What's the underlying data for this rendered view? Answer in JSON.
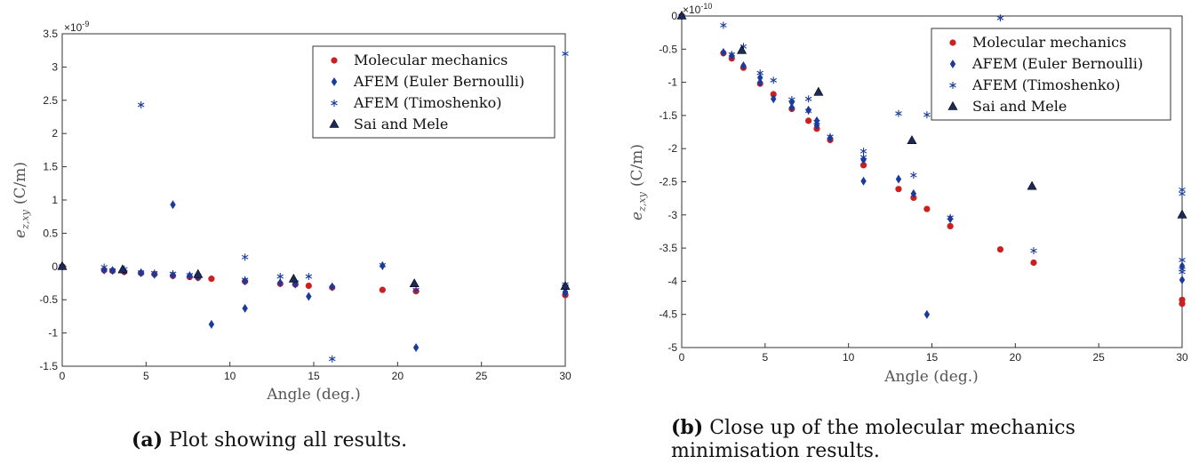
{
  "chart_data": [
    {
      "type": "scatter",
      "xlabel": "Angle (deg.)",
      "ylabel_main": "e",
      "ylabel_sub": "z,xy",
      "ylabel_unit": "(C/m)",
      "exponent": "×10",
      "exponent_power": "-9",
      "xlim": [
        0,
        30
      ],
      "ylim": [
        -1.5,
        3.5
      ],
      "xticks": [
        0,
        5,
        10,
        15,
        20,
        25,
        30
      ],
      "xtick_labels": [
        "0",
        "5",
        "10",
        "15",
        "20",
        "25",
        "30"
      ],
      "yticks": [
        -1.5,
        -1,
        -0.5,
        0,
        0.5,
        1,
        1.5,
        2,
        2.5,
        3,
        3.5
      ],
      "ytick_labels": [
        "-1.5",
        "-1",
        "-0.5",
        "0",
        "0.5",
        "1",
        "1.5",
        "2",
        "2.5",
        "3",
        "3.5"
      ],
      "grid": false,
      "legend_position": "top-right",
      "caption_label": "(a)",
      "caption_text": "Plot showing all results.",
      "series": [
        {
          "name": "Molecular mechanics",
          "marker": "circle",
          "color": "#cc2020",
          "points": [
            [
              0,
              0
            ],
            [
              2.5,
              -0.055
            ],
            [
              3,
              -0.065
            ],
            [
              3.7,
              -0.08
            ],
            [
              4.7,
              -0.1
            ],
            [
              5.5,
              -0.115
            ],
            [
              6.6,
              -0.14
            ],
            [
              7.6,
              -0.158
            ],
            [
              8.1,
              -0.17
            ],
            [
              8.9,
              -0.185
            ],
            [
              10.9,
              -0.225
            ],
            [
              13,
              -0.26
            ],
            [
              13.9,
              -0.27
            ],
            [
              14.7,
              -0.29
            ],
            [
              16.1,
              -0.315
            ],
            [
              19.1,
              -0.352
            ],
            [
              21.1,
              -0.372
            ],
            [
              30,
              -0.425
            ],
            [
              30,
              -0.43
            ]
          ]
        },
        {
          "name": "AFEM (Euler Bernoulli)",
          "marker": "diamond",
          "color": "#1a3b9c",
          "points": [
            [
              0,
              0
            ],
            [
              2.5,
              -0.055
            ],
            [
              3,
              -0.06
            ],
            [
              3.7,
              -0.07
            ],
            [
              4.7,
              -0.095
            ],
            [
              5.5,
              -0.12
            ],
            [
              6.6,
              0.93
            ],
            [
              6.6,
              -0.13
            ],
            [
              7.6,
              -0.14
            ],
            [
              8.1,
              -0.16
            ],
            [
              8.9,
              -0.87
            ],
            [
              10.9,
              -0.63
            ],
            [
              10.9,
              -0.22
            ],
            [
              13,
              -0.245
            ],
            [
              13.9,
              -0.265
            ],
            [
              14.7,
              -0.45
            ],
            [
              16.1,
              -0.305
            ],
            [
              19.1,
              0.01
            ],
            [
              21.1,
              -1.22
            ],
            [
              30,
              -0.38
            ],
            [
              30,
              -0.4
            ]
          ]
        },
        {
          "name": "AFEM (Timoshenko)",
          "marker": "asterisk",
          "color": "#1a3b9c",
          "points": [
            [
              0,
              0
            ],
            [
              2.5,
              -0.01
            ],
            [
              3,
              -0.06
            ],
            [
              3.7,
              -0.04
            ],
            [
              4.7,
              2.43
            ],
            [
              4.7,
              -0.09
            ],
            [
              5.5,
              -0.1
            ],
            [
              6.6,
              -0.11
            ],
            [
              7.6,
              -0.13
            ],
            [
              8.1,
              -0.14
            ],
            [
              10.9,
              0.14
            ],
            [
              10.9,
              -0.2
            ],
            [
              13,
              -0.15
            ],
            [
              13.9,
              -0.24
            ],
            [
              14.7,
              -0.15
            ],
            [
              16.1,
              -1.39
            ],
            [
              19.1,
              0.02
            ],
            [
              21.1,
              -0.355
            ],
            [
              30,
              3.2
            ],
            [
              30,
              -0.27
            ],
            [
              30,
              -0.3
            ]
          ]
        },
        {
          "name": "Sai and Mele",
          "marker": "triangle",
          "color": "#1a2a5c",
          "points": [
            [
              0,
              0
            ],
            [
              3.6,
              -0.05
            ],
            [
              8.1,
              -0.12
            ],
            [
              13.8,
              -0.19
            ],
            [
              21,
              -0.26
            ],
            [
              30,
              -0.3
            ]
          ]
        }
      ]
    },
    {
      "type": "scatter",
      "xlabel": "Angle (deg.)",
      "ylabel_main": "e",
      "ylabel_sub": "z,xy",
      "ylabel_unit": "(C/m)",
      "exponent": "×10",
      "exponent_power": "-10",
      "xlim": [
        0,
        30
      ],
      "ylim": [
        -5,
        0
      ],
      "xticks": [
        0,
        5,
        10,
        15,
        20,
        25,
        30
      ],
      "xtick_labels": [
        "0",
        "5",
        "10",
        "15",
        "20",
        "25",
        "30"
      ],
      "yticks": [
        -5,
        -4.5,
        -4,
        -3.5,
        -3,
        -2.5,
        -2,
        -1.5,
        -1,
        -0.5,
        0
      ],
      "ytick_labels": [
        "-5",
        "-4.5",
        "-4",
        "-3.5",
        "-3",
        "-2.5",
        "-2",
        "-1.5",
        "-1",
        "-0.5",
        "0"
      ],
      "grid": false,
      "legend_position": "top-right",
      "caption_label": "(b)",
      "caption_text_line1": "Close up of the molecular mechanics",
      "caption_text_line2": "minimisation results.",
      "series": [
        {
          "name": "Molecular mechanics",
          "marker": "circle",
          "color": "#cc2020",
          "points": [
            [
              0,
              0
            ],
            [
              2.5,
              -0.56
            ],
            [
              3,
              -0.64
            ],
            [
              3.7,
              -0.78
            ],
            [
              4.7,
              -1.02
            ],
            [
              5.5,
              -1.18
            ],
            [
              6.6,
              -1.4
            ],
            [
              7.6,
              -1.58
            ],
            [
              8.1,
              -1.7
            ],
            [
              8.9,
              -1.87
            ],
            [
              10.9,
              -2.25
            ],
            [
              13,
              -2.61
            ],
            [
              13.9,
              -2.74
            ],
            [
              14.7,
              -2.91
            ],
            [
              16.1,
              -3.17
            ],
            [
              19.1,
              -3.52
            ],
            [
              21.1,
              -3.72
            ],
            [
              30,
              -4.28
            ],
            [
              30,
              -4.34
            ]
          ]
        },
        {
          "name": "AFEM (Euler Bernoulli)",
          "marker": "diamond",
          "color": "#1a3b9c",
          "points": [
            [
              0,
              0
            ],
            [
              2.5,
              -0.55
            ],
            [
              3,
              -0.6
            ],
            [
              3.7,
              -0.75
            ],
            [
              4.7,
              -0.93
            ],
            [
              4.7,
              -1.0
            ],
            [
              5.5,
              -1.25
            ],
            [
              6.6,
              -1.3
            ],
            [
              6.6,
              -1.38
            ],
            [
              7.6,
              -1.42
            ],
            [
              8.1,
              -1.58
            ],
            [
              8.1,
              -1.65
            ],
            [
              8.9,
              -1.84
            ],
            [
              10.9,
              -2.17
            ],
            [
              10.9,
              -2.49
            ],
            [
              13,
              -2.46
            ],
            [
              13.9,
              -2.68
            ],
            [
              14.7,
              -4.5
            ],
            [
              16.1,
              -3.06
            ],
            [
              30,
              -3.77
            ],
            [
              30,
              -3.98
            ]
          ]
        },
        {
          "name": "AFEM (Timoshenko)",
          "marker": "asterisk",
          "color": "#1a3b9c",
          "points": [
            [
              0,
              0
            ],
            [
              2.5,
              -0.14
            ],
            [
              3,
              -0.58
            ],
            [
              3.7,
              -0.46
            ],
            [
              4.7,
              -0.86
            ],
            [
              5.5,
              -0.97
            ],
            [
              6.6,
              -1.26
            ],
            [
              7.6,
              -1.25
            ],
            [
              7.6,
              -1.43
            ],
            [
              8.1,
              -1.6
            ],
            [
              8.9,
              -1.82
            ],
            [
              10.9,
              -2.04
            ],
            [
              10.9,
              -2.13
            ],
            [
              13,
              -1.47
            ],
            [
              13.9,
              -2.4
            ],
            [
              14.7,
              -1.49
            ],
            [
              16.1,
              -3.04
            ],
            [
              19.1,
              -0.03
            ],
            [
              21.1,
              -3.54
            ],
            [
              30,
              -2.62
            ],
            [
              30,
              -2.68
            ],
            [
              30,
              -3.68
            ],
            [
              30,
              -3.82
            ],
            [
              30,
              -3.86
            ]
          ]
        },
        {
          "name": "Sai and Mele",
          "marker": "triangle",
          "color": "#1a2a5c",
          "points": [
            [
              0,
              0
            ],
            [
              3.6,
              -0.52
            ],
            [
              8.2,
              -1.15
            ],
            [
              13.8,
              -1.88
            ],
            [
              21,
              -2.57
            ],
            [
              30,
              -3.0
            ]
          ]
        }
      ]
    }
  ]
}
